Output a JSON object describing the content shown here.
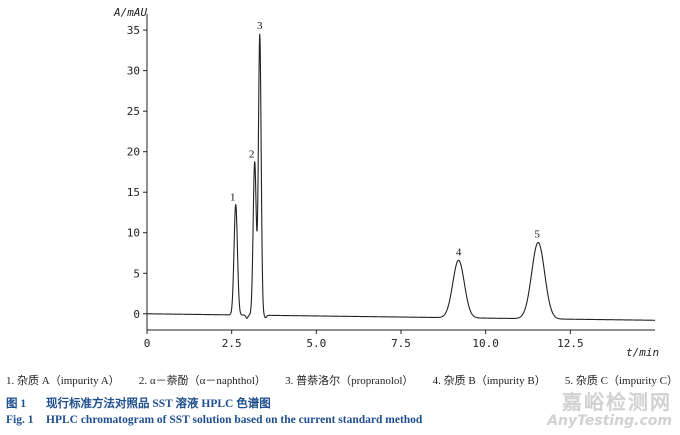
{
  "chart_data": {
    "type": "line",
    "title": "",
    "ylabel": "A/mAU",
    "xlabel": "t/min",
    "xlim": [
      0,
      15
    ],
    "ylim": [
      -2,
      36
    ],
    "x_ticks": [
      0,
      2.5,
      5.0,
      7.5,
      10.0,
      12.5
    ],
    "y_ticks": [
      0,
      5,
      10,
      15,
      20,
      25,
      30,
      35
    ],
    "x_tick_labels": [
      "0",
      "2.5",
      "5.0",
      "7.5",
      "10.0",
      "12.5"
    ],
    "y_tick_labels": [
      "0",
      "5",
      "10",
      "15",
      "20",
      "25",
      "30",
      "35"
    ],
    "grid": false,
    "baseline_y": [
      0,
      -0.8
    ],
    "peaks": [
      {
        "label": "1",
        "x": 2.62,
        "y": 13.5
      },
      {
        "label": "2",
        "x": 3.18,
        "y": 18.8
      },
      {
        "label": "3",
        "x": 3.33,
        "y": 34.5
      },
      {
        "label": "4",
        "x": 9.2,
        "y": 6.6
      },
      {
        "label": "5",
        "x": 11.55,
        "y": 8.8
      }
    ]
  },
  "legend": [
    "1. 杂质 A（impurity A）",
    "2. α－萘酚（α－naphthol）",
    "3. 普萘洛尔（propranolol）",
    "4. 杂质 B（impurity B）",
    "5. 杂质 C（impurity C）"
  ],
  "caption": {
    "cn_num": "图 1",
    "cn_text": "现行标准方法对照品 SST 溶液 HPLC 色谱图",
    "en_num": "Fig. 1",
    "en_text": "HPLC chromatogram of SST solution based on the current standard method"
  },
  "watermark": {
    "cn": "嘉峪检测网",
    "en": "AnyTesting.com"
  }
}
